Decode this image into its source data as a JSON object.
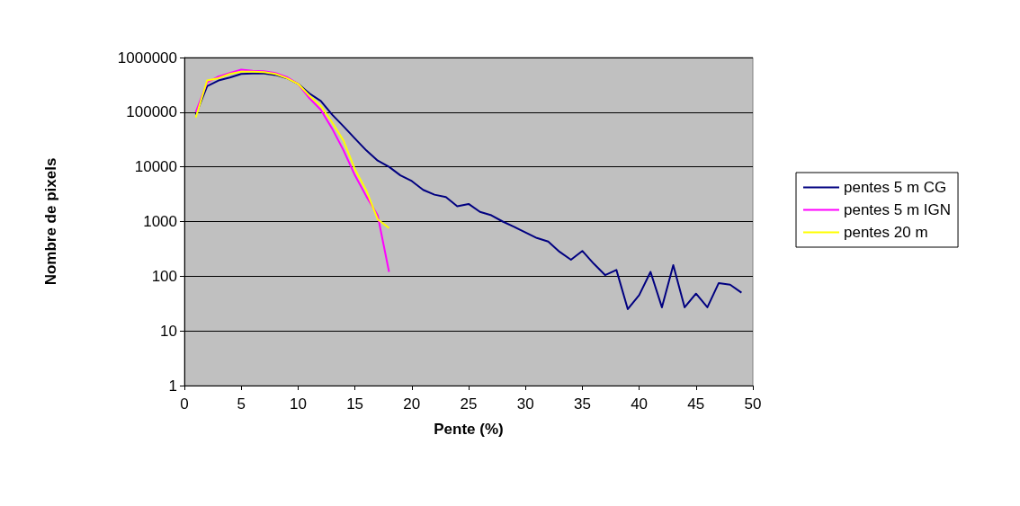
{
  "chart_data": {
    "type": "line",
    "xlabel": "Pente (%)",
    "ylabel": "Nombre de pixels",
    "log": "y",
    "xlim": [
      0,
      50
    ],
    "xticks": [
      0,
      5,
      10,
      15,
      20,
      25,
      30,
      35,
      40,
      45,
      50
    ],
    "ylim": [
      1,
      1000000
    ],
    "yticks": [
      1,
      10,
      100,
      1000,
      10000,
      100000,
      1000000
    ],
    "grid": "y",
    "legend": "right",
    "marker": "none",
    "line_style": "solid",
    "series": [
      {
        "name": "pentes 5 m CG",
        "color": "#000080",
        "x": [
          1,
          2,
          3,
          4,
          5,
          6,
          7,
          8,
          9,
          10,
          11,
          12,
          13,
          14,
          15,
          16,
          17,
          18,
          19,
          20,
          21,
          22,
          23,
          24,
          25,
          26,
          27,
          28,
          29,
          30,
          31,
          32,
          33,
          34,
          35,
          36,
          37,
          38,
          39,
          40,
          41,
          42,
          43,
          44,
          45,
          46,
          47,
          48,
          49
        ],
        "values": [
          90000,
          300000,
          380000,
          430000,
          500000,
          510000,
          510000,
          480000,
          420000,
          330000,
          220000,
          160000,
          90000,
          55000,
          33000,
          20000,
          13000,
          10000,
          7000,
          5500,
          3800,
          3100,
          2800,
          1900,
          2100,
          1500,
          1300,
          1000,
          800,
          630,
          500,
          430,
          280,
          200,
          290,
          170,
          105,
          130,
          25,
          45,
          120,
          27,
          160,
          27,
          48,
          27,
          75,
          70,
          50
        ]
      },
      {
        "name": "pentes 5 m IGN",
        "color": "#ff00ff",
        "x": [
          1,
          2,
          3,
          4,
          5,
          6,
          7,
          8,
          9,
          10,
          11,
          12,
          13,
          14,
          15,
          16,
          17,
          18
        ],
        "values": [
          100000,
          350000,
          450000,
          520000,
          600000,
          570000,
          560000,
          520000,
          440000,
          330000,
          180000,
          110000,
          50000,
          20000,
          7000,
          2900,
          1300,
          120
        ]
      },
      {
        "name": "pentes 20 m",
        "color": "#ffff00",
        "x": [
          1,
          2,
          3,
          4,
          5,
          6,
          7,
          8,
          9,
          10,
          11,
          12,
          13,
          14,
          15,
          16,
          17,
          18
        ],
        "values": [
          80000,
          380000,
          420000,
          500000,
          550000,
          550000,
          540000,
          500000,
          420000,
          330000,
          200000,
          130000,
          65000,
          30000,
          9000,
          3700,
          1100,
          760
        ]
      }
    ]
  }
}
